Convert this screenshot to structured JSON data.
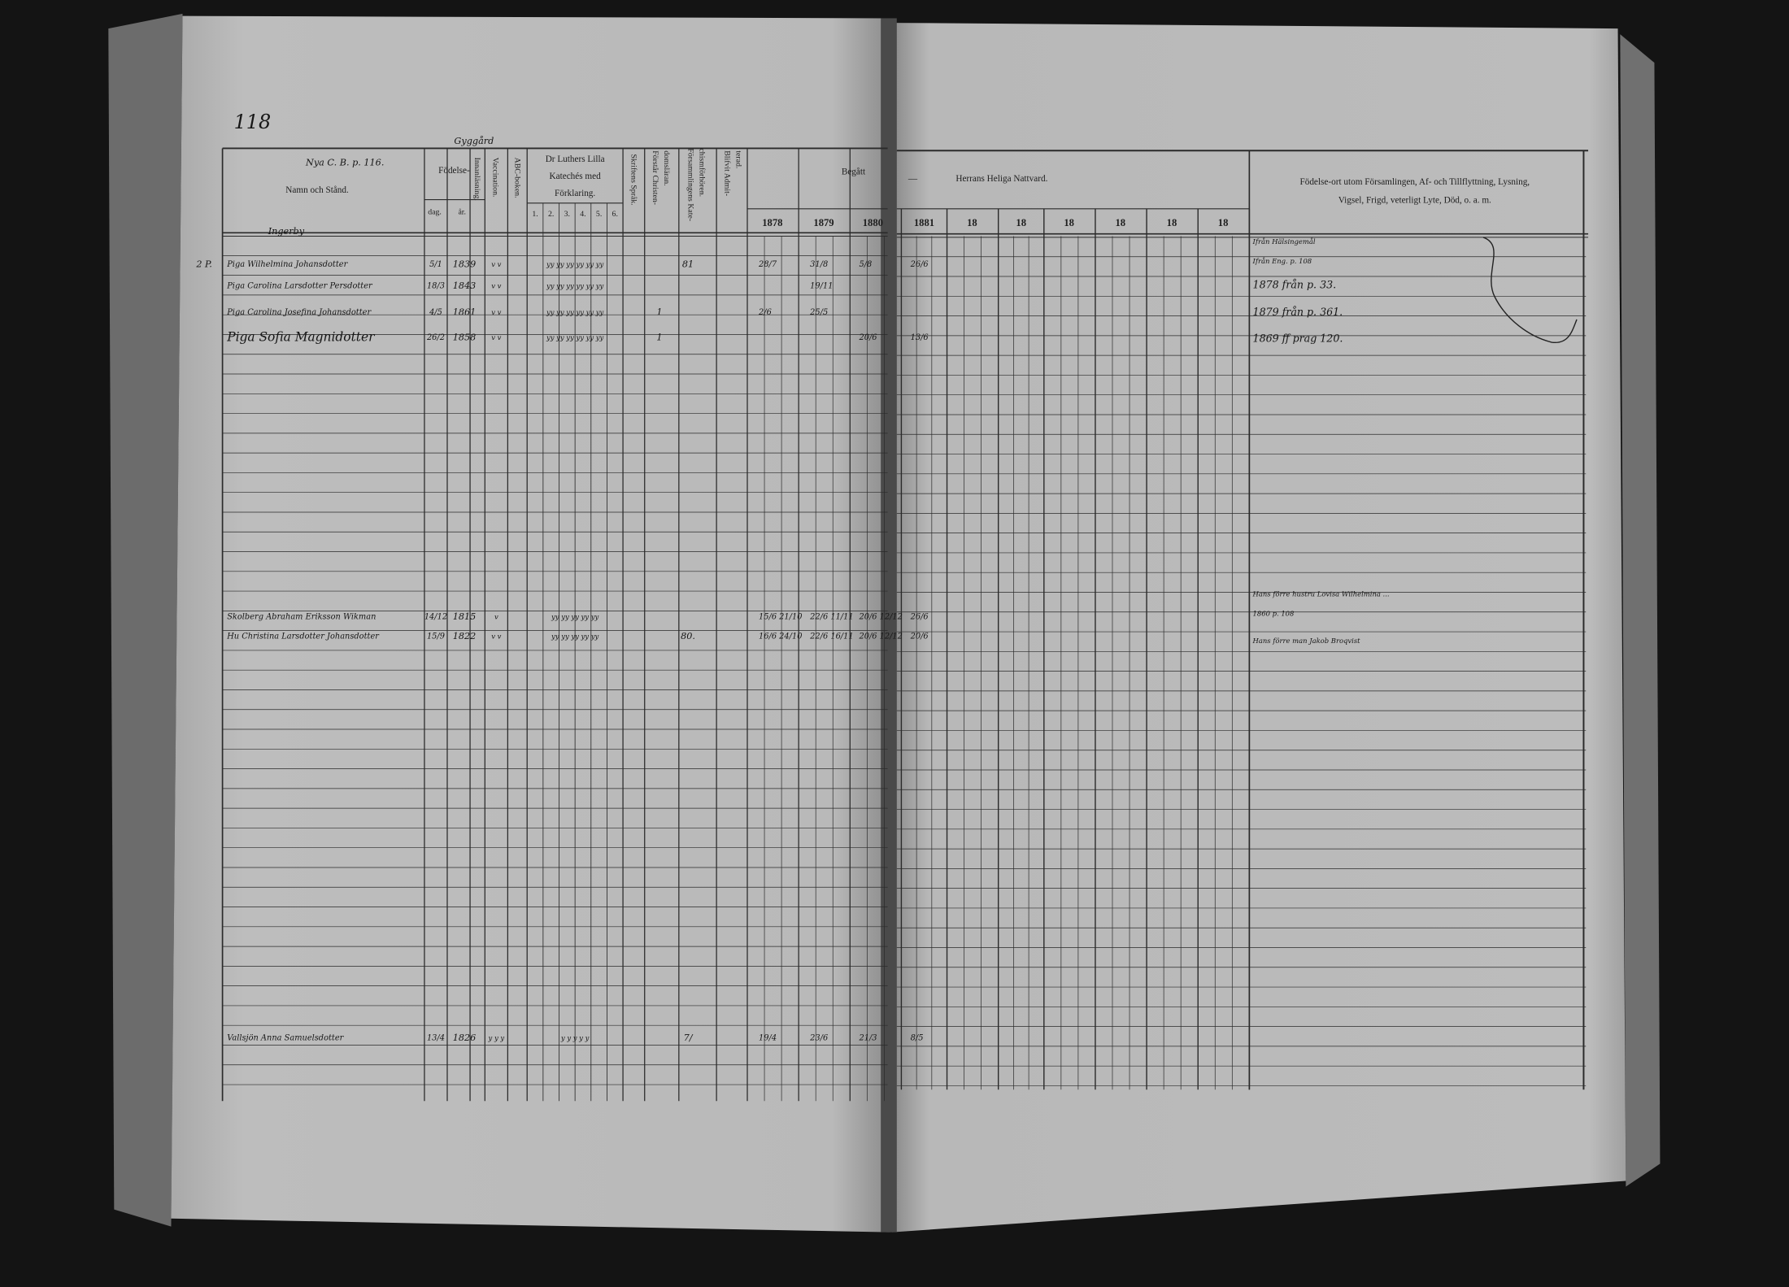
{
  "page_number": "118",
  "header_note": "Nya C. B. p. 116.",
  "place_note": "Gyggård",
  "left_headers": {
    "name": "Namn och Stånd.",
    "birth": "Födelse-",
    "day": "dag.",
    "year": "år.",
    "reading": "Innanläsning.",
    "vaccination": "Vaccination.",
    "abc": "ABC-boken.",
    "catechism": [
      "Dr Luthers Lilla",
      "Katechés med",
      "Förklaring."
    ],
    "catechism_columns": [
      "1.",
      "2.",
      "3.",
      "4.",
      "5.",
      "6."
    ],
    "script_language": "Skriftens Språk.",
    "christianity": [
      "Förstår Christen-",
      "domsläran."
    ],
    "catechism_hearings": [
      "Försammlingens Kate-",
      "chismförhören."
    ],
    "admitted": [
      "Blifvit Admit-",
      "terad."
    ]
  },
  "right_headers": {
    "begatt": "Begått",
    "dash": "—",
    "communion": "Herrans Heliga Nattvard.",
    "years": [
      "1878",
      "1879",
      "1880",
      "1881",
      "18",
      "18",
      "18",
      "18",
      "18",
      "18"
    ],
    "remarks": [
      "Födelse-ort utom Församlingen, Af- och Tillflyttning, Lysning,",
      "Vigsel, Frigd, veterligt Lyte, Död, o. a. m."
    ]
  },
  "village": "Ingerby",
  "margin_note": "2 P.",
  "entries": [
    {
      "name": "Piga Wilhelmina Johansdotter",
      "day": "5/1",
      "year": "1839",
      "marks": "v v",
      "catechism": "yy yy yy yy yy yy",
      "hearings": "81",
      "communion": [
        "28/7",
        "31/8",
        "5/8",
        "26/6"
      ]
    },
    {
      "name": "Piga Carolina Larsdotter Persdotter",
      "day": "18/3",
      "year": "1843",
      "marks": "v v",
      "catechism": "yy yy yy yy yy yy",
      "communion": [
        null,
        "19/11",
        null,
        null
      ]
    },
    {
      "name": "Piga Carolina Josefina Johansdotter",
      "day": "4/5",
      "year": "1861",
      "marks": "v v",
      "catechism": "yy yy yy yy yy yy",
      "christianity": "1",
      "communion": [
        "2/6",
        "25/5",
        null,
        null
      ]
    },
    {
      "name": "Piga Sofia Magnidotter",
      "day": "26/2",
      "year": "1858",
      "marks": "v v",
      "catechism": "yy yy yy yy yy yy",
      "christianity": "1",
      "communion": [
        null,
        null,
        "20/6",
        "13/6"
      ]
    },
    {
      "name": "Skolberg Abraham Eriksson Wikman",
      "day": "14/12",
      "year": "1815",
      "marks": "v",
      "catechism": "yy yy yy yy yy",
      "communion": [
        "15/6 21/10",
        "22/6 11/11",
        "20/6 12/12",
        "26/6"
      ]
    },
    {
      "name": "Hu Christina Larsdotter Johansdotter",
      "day": "15/9",
      "year": "1822",
      "marks": "v v",
      "catechism": "yy yy yy yy yy",
      "hearings": "80.",
      "communion": [
        "16/6 24/10",
        "22/6 16/11",
        "20/6 12/12",
        "20/6"
      ]
    },
    {
      "name": "Vallsjön Anna Samuelsdotter",
      "day": "13/4",
      "year": "1826",
      "marks": "y y y",
      "catechism": "y y y y y",
      "hearings": "7/",
      "communion": [
        "19/4",
        "23/6",
        "21/3",
        "8/5"
      ]
    }
  ],
  "remarks": [
    "Ifrån Hälsingemål",
    "Ifrån Eng. p. 108",
    "1878 från p. 33.",
    "1879 från p. 361.",
    "1869 ff prag 120.",
    "Hans förre hustru Lovisa Wilhelmina ...",
    "1860 p. 108",
    "Hans förre man Jakob Broqvist"
  ]
}
